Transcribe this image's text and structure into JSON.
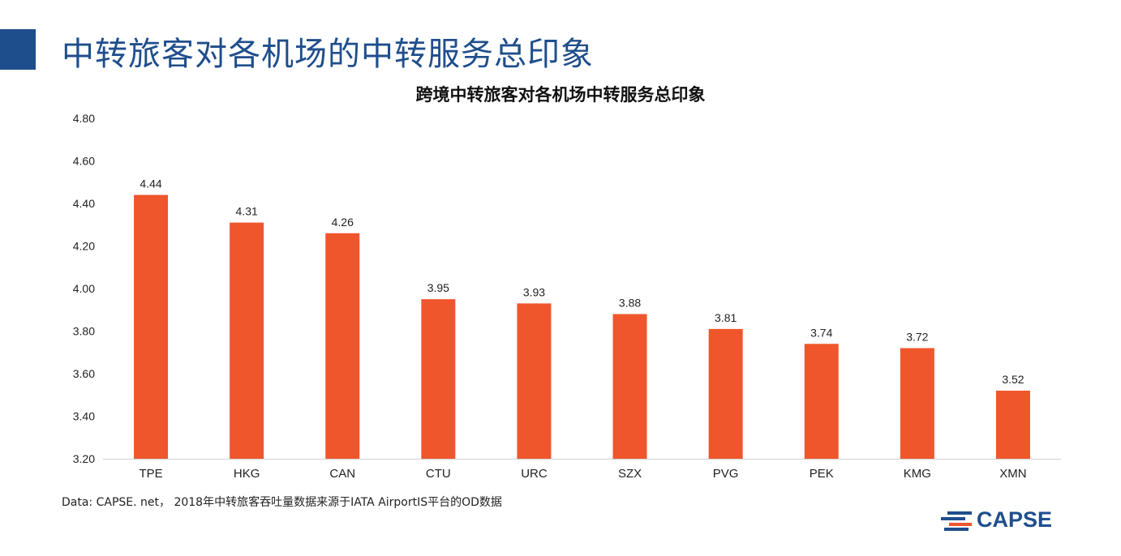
{
  "slide": {
    "title": "中转旅客对各机场的中转服务总印象",
    "source_note": "Data: CAPSE. net， 2018年中转旅客吞吐量数据来源于IATA AirportIS平台的OD数据",
    "logo_text": "CAPSE"
  },
  "colors": {
    "accent": "#1f4e8c",
    "bar": "#f0562c",
    "axis": "#d0d0d0"
  },
  "chart_data": {
    "type": "bar",
    "title": "跨境中转旅客对各机场中转服务总印象",
    "categories": [
      "TPE",
      "HKG",
      "CAN",
      "CTU",
      "URC",
      "SZX",
      "PVG",
      "PEK",
      "KMG",
      "XMN"
    ],
    "values": [
      4.44,
      4.31,
      4.26,
      3.95,
      3.93,
      3.88,
      3.81,
      3.74,
      3.72,
      3.52
    ],
    "data_labels": [
      "4.44",
      "4.31",
      "4.26",
      "3.95",
      "3.93",
      "3.88",
      "3.81",
      "3.74",
      "3.72",
      "3.52"
    ],
    "ylim": [
      3.2,
      4.8
    ],
    "yticks": [
      "3.20",
      "3.40",
      "3.60",
      "3.80",
      "4.00",
      "4.20",
      "4.40",
      "4.60",
      "4.80"
    ],
    "xlabel": "",
    "ylabel": "",
    "grid": false,
    "legend": "none"
  }
}
